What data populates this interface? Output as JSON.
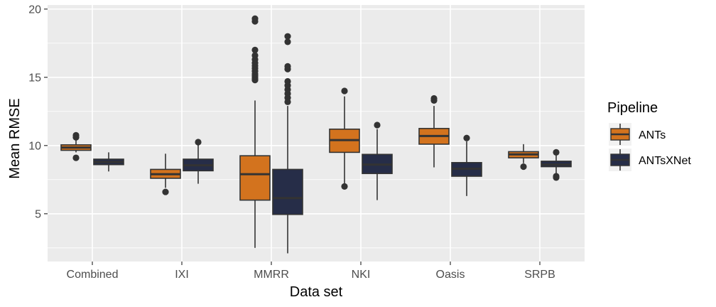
{
  "chart_data": {
    "type": "boxplot",
    "xlabel": "Data set",
    "ylabel": "Mean RMSE",
    "categories": [
      "Combined",
      "IXI",
      "MMRR",
      "NKI",
      "Oasis",
      "SRPB"
    ],
    "ylim": [
      1.5,
      20.3
    ],
    "yticks": [
      5,
      10,
      15,
      20
    ],
    "grid": true,
    "legend": {
      "title": "Pipeline",
      "position": "right"
    },
    "series": [
      {
        "name": "ANTs",
        "color": "#d3731e",
        "boxes": [
          {
            "min": 9.5,
            "q1": 9.65,
            "median": 9.85,
            "q3": 10.05,
            "max": 10.4,
            "outliers": [
              10.6,
              10.75,
              9.1
            ]
          },
          {
            "min": 6.9,
            "q1": 7.6,
            "median": 7.9,
            "q3": 8.25,
            "max": 9.4,
            "outliers": [
              6.6
            ]
          },
          {
            "min": 2.5,
            "q1": 6.0,
            "median": 7.9,
            "q3": 9.25,
            "max": 13.3,
            "outliers": [
              14.8,
              14.95,
              15.1,
              15.25,
              15.45,
              15.65,
              15.85,
              16.05,
              16.3,
              16.6,
              17.0,
              19.1,
              19.3
            ]
          },
          {
            "min": 7.0,
            "q1": 9.5,
            "median": 10.4,
            "q3": 11.2,
            "max": 13.6,
            "outliers": [
              14.0,
              7.0
            ]
          },
          {
            "min": 8.4,
            "q1": 10.1,
            "median": 10.7,
            "q3": 11.25,
            "max": 12.9,
            "outliers": [
              13.3,
              13.45
            ]
          },
          {
            "min": 8.7,
            "q1": 9.1,
            "median": 9.35,
            "q3": 9.55,
            "max": 10.1,
            "outliers": [
              8.45
            ]
          }
        ]
      },
      {
        "name": "ANTsXNet",
        "color": "#262d48",
        "boxes": [
          {
            "min": 8.1,
            "q1": 8.6,
            "median": 8.8,
            "q3": 9.0,
            "max": 9.5,
            "outliers": []
          },
          {
            "min": 7.2,
            "q1": 8.15,
            "median": 8.55,
            "q3": 9.0,
            "max": 10.2,
            "outliers": [
              10.25
            ]
          },
          {
            "min": 2.1,
            "q1": 4.95,
            "median": 6.15,
            "q3": 8.25,
            "max": 12.9,
            "outliers": [
              13.2,
              13.5,
              13.8,
              14.1,
              14.4,
              14.7,
              15.6,
              15.8,
              17.6,
              18.0
            ]
          },
          {
            "min": 6.0,
            "q1": 7.95,
            "median": 8.6,
            "q3": 9.35,
            "max": 11.2,
            "outliers": [
              11.5
            ]
          },
          {
            "min": 6.3,
            "q1": 7.75,
            "median": 8.3,
            "q3": 8.75,
            "max": 10.3,
            "outliers": [
              10.55
            ]
          },
          {
            "min": 7.9,
            "q1": 8.45,
            "median": 8.6,
            "q3": 8.85,
            "max": 9.4,
            "outliers": [
              9.5,
              7.75,
              7.65
            ]
          }
        ]
      }
    ]
  }
}
